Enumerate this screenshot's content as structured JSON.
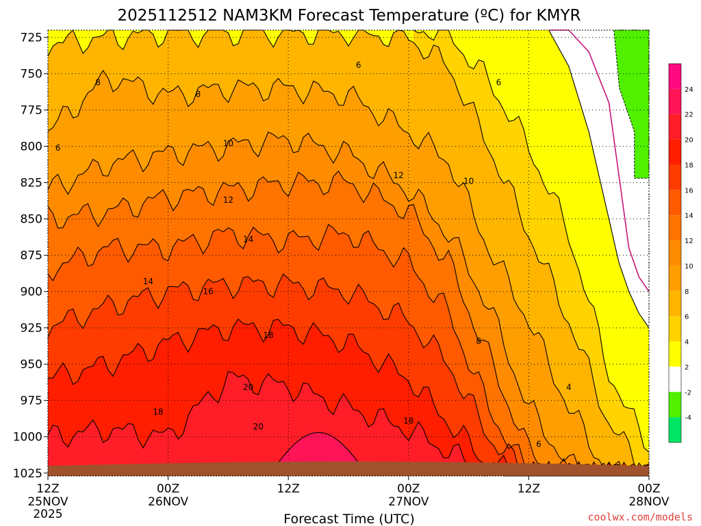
{
  "page": {
    "title": "2025112512 NAM3KM Forecast Temperature (ºC) for KMYR",
    "credit": "coolwx.com/models"
  },
  "chart_data": {
    "type": "heatmap",
    "title": "2025112512 NAM3KM Forecast Temperature (ºC) for KMYR",
    "xlabel": "Forecast Time (UTC)",
    "ylabel": "",
    "x_ticks": [
      {
        "top": "12Z",
        "mid": "25NOV",
        "bot": "2025",
        "hour": 0
      },
      {
        "top": "00Z",
        "mid": "26NOV",
        "bot": "",
        "hour": 12
      },
      {
        "top": "12Z",
        "mid": "",
        "bot": "",
        "hour": 24
      },
      {
        "top": "00Z",
        "mid": "27NOV",
        "bot": "",
        "hour": 36
      },
      {
        "top": "12Z",
        "mid": "",
        "bot": "",
        "hour": 48
      },
      {
        "top": "00Z",
        "mid": "28NOV",
        "bot": "",
        "hour": 60
      }
    ],
    "x_range_hours": [
      0,
      60
    ],
    "y_ticks": [
      725,
      750,
      775,
      800,
      825,
      850,
      875,
      900,
      925,
      950,
      975,
      1000,
      1025
    ],
    "y_range_hpa": [
      720,
      1027
    ],
    "colorbar": {
      "labels": [
        "24",
        "22",
        "20",
        "18",
        "16",
        "14",
        "12",
        "10",
        "8",
        "6",
        "4",
        "2",
        "-2",
        "-4"
      ],
      "bins": [
        {
          "lo": 24,
          "hi": 26,
          "color": "#ff0a80"
        },
        {
          "lo": 22,
          "hi": 24,
          "color": "#ff1458"
        },
        {
          "lo": 20,
          "hi": 22,
          "color": "#ff1e28"
        },
        {
          "lo": 18,
          "hi": 20,
          "color": "#ff1e00"
        },
        {
          "lo": 16,
          "hi": 18,
          "color": "#ff3c00"
        },
        {
          "lo": 14,
          "hi": 16,
          "color": "#ff5a00"
        },
        {
          "lo": 12,
          "hi": 14,
          "color": "#ff7300"
        },
        {
          "lo": 10,
          "hi": 12,
          "color": "#ff8c00"
        },
        {
          "lo": 8,
          "hi": 10,
          "color": "#ff9e00"
        },
        {
          "lo": 6,
          "hi": 8,
          "color": "#ffb400"
        },
        {
          "lo": 4,
          "hi": 6,
          "color": "#ffd200"
        },
        {
          "lo": 2,
          "hi": 4,
          "color": "#ffff00"
        },
        {
          "lo": -2,
          "hi": 2,
          "color": "#ffffff"
        },
        {
          "lo": -4,
          "hi": -2,
          "color": "#50f000"
        },
        {
          "lo": -6,
          "hi": -4,
          "color": "#00e664"
        }
      ]
    },
    "contour_levels": [
      4,
      6,
      8,
      10,
      12,
      14,
      16,
      18,
      20
    ],
    "freezing_level_color": "#c81478",
    "terrain_color": "#a0522d",
    "grid": true,
    "bands_top_hpa": {
      "hours": [
        0,
        6,
        12,
        18,
        24,
        30,
        36,
        40,
        44,
        48,
        52,
        56,
        58,
        60
      ],
      "t4": [
        null,
        null,
        null,
        null,
        null,
        null,
        null,
        723,
        755,
        800,
        860,
        955,
        985,
        1005
      ],
      "t6": [
        730,
        725,
        722,
        722,
        722,
        722,
        725,
        745,
        800,
        860,
        920,
        990,
        1010,
        1025
      ],
      "t8": [
        790,
        752,
        765,
        760,
        760,
        765,
        790,
        810,
        870,
        920,
        980,
        1025,
        1027,
        1027
      ],
      "t10": [
        830,
        812,
        805,
        800,
        795,
        805,
        830,
        860,
        910,
        980,
        1020,
        1027,
        1027,
        1027
      ],
      "t12": [
        850,
        845,
        835,
        830,
        825,
        825,
        845,
        880,
        945,
        1010,
        1027,
        1027,
        1027,
        1027
      ],
      "t14": [
        885,
        870,
        870,
        860,
        865,
        860,
        880,
        915,
        980,
        1027,
        1027,
        1027,
        1027,
        1027
      ],
      "t16": [
        925,
        910,
        900,
        895,
        895,
        900,
        920,
        950,
        1000,
        1027,
        1027,
        1027,
        1027,
        1027
      ],
      "t18": [
        960,
        950,
        935,
        925,
        925,
        935,
        960,
        990,
        1020,
        1027,
        1027,
        1027,
        1027,
        1027
      ],
      "t20": [
        1000,
        995,
        1000,
        960,
        965,
        980,
        995,
        1010,
        1027,
        1027,
        1027,
        1027,
        1027,
        1027
      ]
    },
    "cold_zone": {
      "hours": [
        50,
        52,
        54,
        56,
        57,
        58,
        59,
        60
      ],
      "t2_bottom_hpa": [
        720,
        745,
        790,
        850,
        880,
        900,
        915,
        925
      ],
      "freezing_bottom_hpa": [
        720,
        720,
        735,
        770,
        820,
        870,
        890,
        900
      ],
      "neg2_left_hour_at_top": 56.5,
      "neg2_bottom_hpa": 822
    },
    "contour_label_points": [
      {
        "text": "6",
        "hour": 31,
        "hpa": 744
      },
      {
        "text": "6",
        "hour": 45,
        "hpa": 756
      },
      {
        "text": "8",
        "hour": 5,
        "hpa": 756
      },
      {
        "text": "8",
        "hour": 15,
        "hpa": 764
      },
      {
        "text": "6",
        "hour": 1,
        "hpa": 801
      },
      {
        "text": "10",
        "hour": 18,
        "hpa": 798
      },
      {
        "text": "12",
        "hour": 35,
        "hpa": 820
      },
      {
        "text": "10",
        "hour": 42,
        "hpa": 824
      },
      {
        "text": "12",
        "hour": 18,
        "hpa": 837
      },
      {
        "text": "14",
        "hour": 20,
        "hpa": 864
      },
      {
        "text": "14",
        "hour": 10,
        "hpa": 893
      },
      {
        "text": "16",
        "hour": 16,
        "hpa": 900
      },
      {
        "text": "18",
        "hour": 22,
        "hpa": 930
      },
      {
        "text": "8",
        "hour": 43,
        "hpa": 934
      },
      {
        "text": "20",
        "hour": 20,
        "hpa": 966
      },
      {
        "text": "4",
        "hour": 52,
        "hpa": 966
      },
      {
        "text": "18",
        "hour": 11,
        "hpa": 983
      },
      {
        "text": "18",
        "hour": 36,
        "hpa": 989
      },
      {
        "text": "20",
        "hour": 21,
        "hpa": 993
      },
      {
        "text": "6",
        "hour": 49,
        "hpa": 1005
      }
    ]
  }
}
